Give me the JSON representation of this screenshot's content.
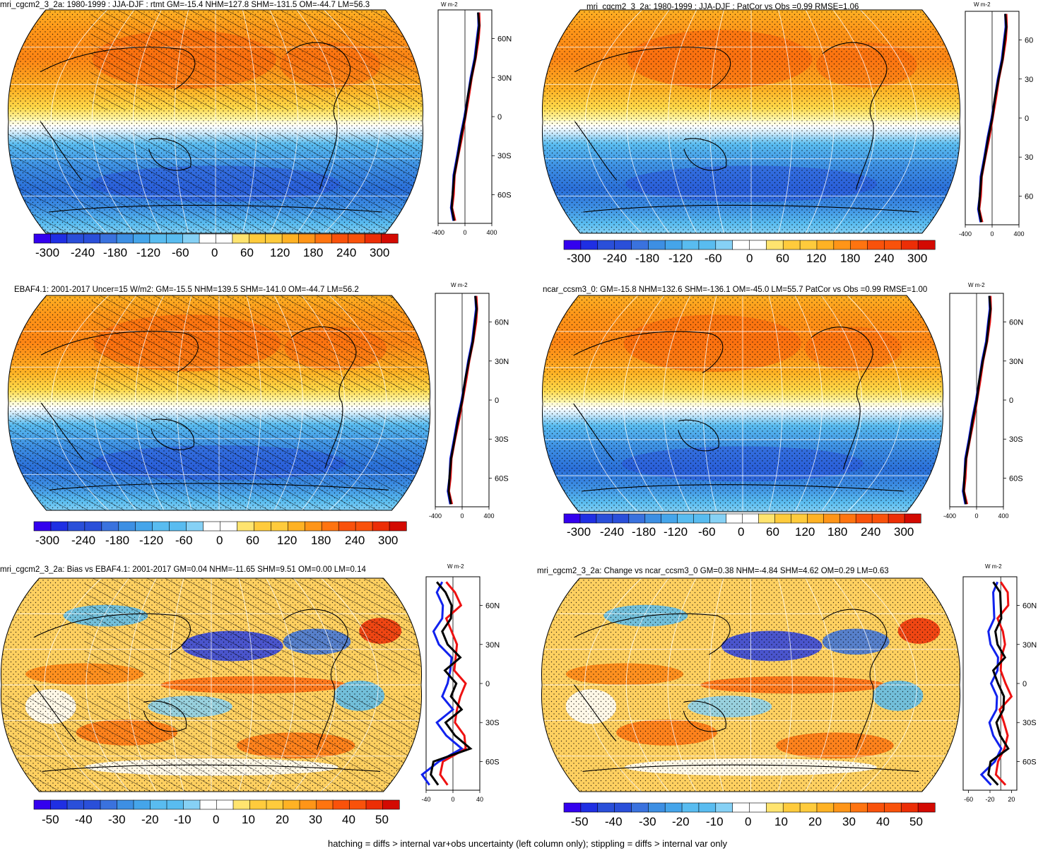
{
  "caption": "hatching = diffs > internal var+obs uncertainty (left column only); stippling = diffs > internal var only",
  "colors": {
    "neg_ramp": [
      "#3300ee",
      "#1f2fe3",
      "#2a4fd9",
      "#3a72de",
      "#3d8fe3",
      "#45a5ea",
      "#59bcf0",
      "#86d1f5"
    ],
    "pos_ramp": [
      "#fff6a8",
      "#ffe46f",
      "#ffcb3c",
      "#ffb224",
      "#ff9518",
      "#ff7410",
      "#f9520b",
      "#ec2e06",
      "#d30a02"
    ],
    "model": "#ee1111",
    "obs": "#1122ee",
    "mean": "#000000"
  },
  "chart_data": [
    {
      "type": "heatmap",
      "panel": "mri-mean",
      "title": "mri_cgcm2_3_2a: 1980-1999 : JJA-DJF : rtmt GM=-15.4 NHM=127.8 SHM=-131.5 OM=-44.7 LM=56.3",
      "projection": "Robinson",
      "colorbar_ticks": [
        "-300",
        "-240",
        "-180",
        "-120",
        "-60",
        "0",
        "60",
        "120",
        "180",
        "240",
        "300"
      ],
      "zonal_unit": "W m-2",
      "zonal_xticks": [
        "-400",
        "0",
        "400"
      ],
      "zonal_xlim": [
        -400,
        400
      ],
      "zonal_yticks": [
        "60N",
        "30N",
        "0",
        "30S",
        "60S"
      ],
      "zonal_profile": {
        "lat": [
          80,
          70,
          60,
          45,
          30,
          15,
          0,
          -15,
          -30,
          -45,
          -60,
          -70,
          -80
        ],
        "value": [
          200,
          210,
          190,
          150,
          95,
          45,
          0,
          -55,
          -110,
          -160,
          -180,
          -200,
          -160
        ]
      }
    },
    {
      "type": "heatmap",
      "panel": "mri-patcor",
      "title": "mri_cgcm2_3_2a: 1980-1999 : JJA-DJF : PatCor vs Obs =0.99 RMSE=1.06",
      "projection": "Robinson",
      "colorbar_ticks": [
        "-300",
        "-240",
        "-180",
        "-120",
        "-60",
        "0",
        "60",
        "120",
        "180",
        "240",
        "300"
      ],
      "zonal_unit": "W m-2",
      "zonal_xticks": [
        "-400",
        "0",
        "400"
      ],
      "zonal_xlim": [
        -400,
        400
      ],
      "zonal_yticks": [
        "60",
        "30",
        "0",
        "30",
        "60"
      ],
      "zonal_profile": {
        "lat": [
          80,
          70,
          60,
          45,
          30,
          15,
          0,
          -15,
          -30,
          -45,
          -60,
          -70,
          -80
        ],
        "value": [
          200,
          210,
          190,
          150,
          95,
          45,
          0,
          -55,
          -110,
          -160,
          -180,
          -200,
          -160
        ]
      }
    },
    {
      "type": "heatmap",
      "panel": "ebaf-mean",
      "title": "EBAF4.1: 2001-2017 Uncer=15 W/m2: GM=-15.5 NHM=139.5 SHM=-141.0 OM=-44.7 LM=56.2",
      "projection": "Robinson",
      "colorbar_ticks": [
        "-300",
        "-240",
        "-180",
        "-120",
        "-60",
        "0",
        "60",
        "120",
        "180",
        "240",
        "300"
      ],
      "zonal_unit": "W m-2",
      "zonal_xticks": [
        "-400",
        "0",
        "400"
      ],
      "zonal_xlim": [
        -400,
        400
      ],
      "zonal_yticks": [
        "60N",
        "30N",
        "0",
        "30S",
        "60S"
      ],
      "zonal_profile": {
        "lat": [
          80,
          70,
          60,
          45,
          30,
          15,
          0,
          -15,
          -30,
          -45,
          -60,
          -70,
          -80
        ],
        "value": [
          200,
          215,
          195,
          155,
          100,
          48,
          0,
          -58,
          -115,
          -165,
          -185,
          -205,
          -165
        ]
      }
    },
    {
      "type": "heatmap",
      "panel": "ncar-mean",
      "title": "ncar_ccsm3_0: GM=-15.8 NHM=132.6 SHM=-136.1 OM=-45.0 LM=55.7 PatCor vs Obs =0.99 RMSE=1.00",
      "projection": "Robinson",
      "colorbar_ticks": [
        "-300",
        "-240",
        "-180",
        "-120",
        "-60",
        "0",
        "60",
        "120",
        "180",
        "240",
        "300"
      ],
      "zonal_unit": "W m-2",
      "zonal_xticks": [
        "-400",
        "0",
        "400"
      ],
      "zonal_xlim": [
        -400,
        400
      ],
      "zonal_yticks": [
        "60N",
        "30N",
        "0",
        "30S",
        "60S"
      ],
      "zonal_profile": {
        "lat": [
          80,
          70,
          60,
          45,
          30,
          15,
          0,
          -15,
          -30,
          -45,
          -60,
          -70,
          -80
        ],
        "value": [
          195,
          205,
          185,
          148,
          92,
          44,
          0,
          -54,
          -108,
          -158,
          -178,
          -195,
          -155
        ]
      }
    },
    {
      "type": "heatmap",
      "panel": "bias",
      "title": "mri_cgcm2_3_2a: Bias vs EBAF4.1: 2001-2017 GM=0.04 NHM=-11.65 SHM=9.51 OM=0.00 LM=0.14",
      "projection": "Robinson",
      "colorbar_ticks": [
        "-50",
        "-40",
        "-30",
        "-20",
        "-10",
        "0",
        "10",
        "20",
        "30",
        "40",
        "50"
      ],
      "zonal_unit": "W m-2",
      "zonal_xticks": [
        "-40",
        "0",
        "40"
      ],
      "zonal_xlim": [
        -40,
        40
      ],
      "zonal_yticks": [
        "60N",
        "30N",
        "0",
        "30S",
        "60S"
      ],
      "zonal_profile": {
        "lat": [
          78,
          70,
          60,
          50,
          40,
          30,
          20,
          10,
          0,
          -10,
          -20,
          -30,
          -40,
          -50,
          -60,
          -70,
          -78
        ],
        "value": [
          -15,
          -8,
          -5,
          -12,
          -10,
          -8,
          5,
          -3,
          8,
          -6,
          4,
          -5,
          3,
          20,
          -20,
          -30,
          -25
        ]
      }
    },
    {
      "type": "heatmap",
      "panel": "change",
      "title": "mri_cgcm2_3_2a: Change vs ncar_ccsm3_0 GM=0.38 NHM=-4.84 SHM=4.62 OM=0.29 LM=0.63",
      "projection": "Robinson",
      "colorbar_ticks": [
        "-50",
        "-40",
        "-30",
        "-20",
        "-10",
        "0",
        "10",
        "20",
        "30",
        "40",
        "50"
      ],
      "zonal_unit": "W m-2",
      "zonal_xticks": [
        "-60",
        "-20",
        "20"
      ],
      "zonal_xlim": [
        -70,
        30
      ],
      "zonal_yticks": [
        "60N",
        "30N",
        "0",
        "30S",
        "60S"
      ],
      "zonal_profile": {
        "lat": [
          78,
          70,
          60,
          50,
          40,
          30,
          20,
          10,
          0,
          -10,
          -20,
          -30,
          -40,
          -50,
          -60,
          -70,
          -78
        ],
        "value": [
          -5,
          2,
          -3,
          -8,
          -4,
          -6,
          2,
          -5,
          -2,
          3,
          -4,
          -2,
          -1,
          8,
          -10,
          -20,
          -8
        ]
      }
    }
  ]
}
